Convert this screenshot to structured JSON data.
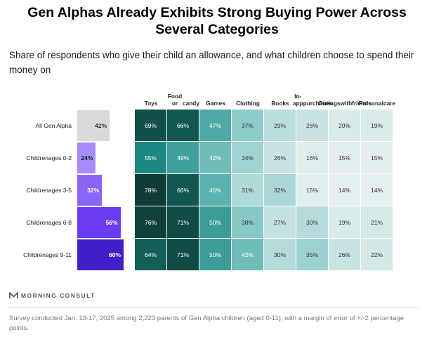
{
  "title_line1": "Gen Alphas Already Exhibits Strong Buying Power Across",
  "title_line2": "Several Categories",
  "subtitle": "Share of respondents who give their child an allowance, and what children choose to spend their money on",
  "brand": "MORNING CONSULT",
  "footnote": "Survey conducted Jan. 13-17, 2025 among 2,223 parents of Gen Alpha children (aged 0-11), with a margin of error of +/-2 percentage points.",
  "chart_data": {
    "type": "heatmap",
    "title": "Gen Alphas Already Exhibits Strong Buying Power Across Several Categories",
    "subtitle": "Share of respondents who give their child an allowance, and what children choose to spend their money on",
    "rows": [
      "All Gen Alpha",
      "Children ages 0-2",
      "Children ages 3-5",
      "Children ages 6-8",
      "Children ages 9-11"
    ],
    "row_label_lines": [
      [
        "All Gen Alpha"
      ],
      [
        "Children",
        "ages 0-2"
      ],
      [
        "Children",
        "ages 3-5"
      ],
      [
        "Children",
        "ages 6-8"
      ],
      [
        "Children",
        "ages 9-11"
      ]
    ],
    "allowance_values": [
      42,
      24,
      32,
      56,
      60
    ],
    "allowance_colors": [
      "#d9d9d9",
      "#a58cf9",
      "#8a66f7",
      "#6a3df0",
      "#3f1fc6"
    ],
    "allowance_text_colors": [
      "#333333",
      "#222222",
      "#ffffff",
      "#ffffff",
      "#ffffff"
    ],
    "allowance_max": 60,
    "columns": [
      "Toys",
      "Food or candy",
      "Games",
      "Clothing",
      "Books",
      "In-app purchases",
      "Outings with friends",
      "Personal care"
    ],
    "column_label_lines": [
      [
        "Toys"
      ],
      [
        "Food or",
        "candy"
      ],
      [
        "Games"
      ],
      [
        "Clothing"
      ],
      [
        "Books"
      ],
      [
        "In-app",
        "purchases"
      ],
      [
        "Outings",
        "with",
        "friends"
      ],
      [
        "Personal",
        "care"
      ]
    ],
    "values": [
      [
        69,
        66,
        47,
        37,
        29,
        26,
        20,
        19
      ],
      [
        55,
        49,
        42,
        34,
        26,
        16,
        15,
        15
      ],
      [
        78,
        66,
        45,
        31,
        32,
        15,
        14,
        14
      ],
      [
        76,
        71,
        50,
        38,
        27,
        30,
        19,
        21
      ],
      [
        64,
        71,
        50,
        42,
        30,
        35,
        26,
        22
      ]
    ],
    "unit": "%"
  }
}
